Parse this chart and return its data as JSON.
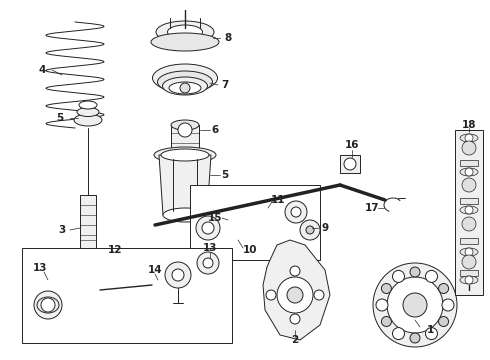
{
  "bg_color": "#ffffff",
  "line_color": "#222222",
  "fig_width": 4.9,
  "fig_height": 3.6,
  "dpi": 100
}
